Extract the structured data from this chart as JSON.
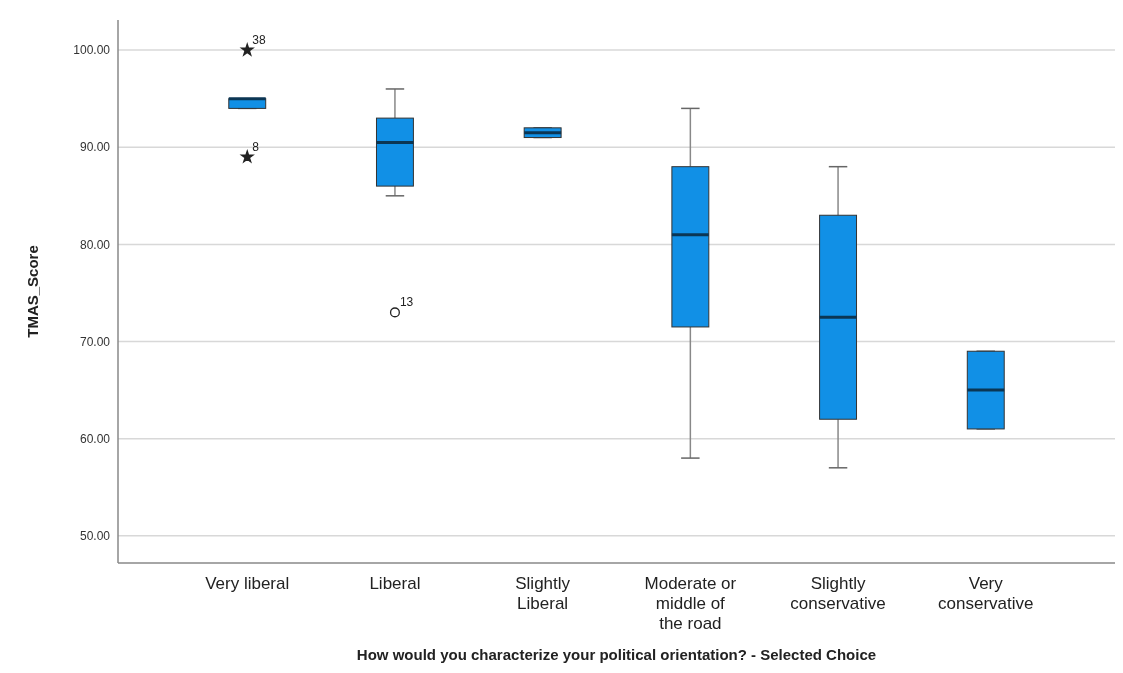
{
  "chart_data": {
    "type": "box",
    "xlabel": "How would you characterize your political orientation? - Selected Choice",
    "ylabel": "TMAS_Score",
    "categories": [
      "Very liberal",
      "Liberal",
      "Slightly Liberal",
      "Moderate or middle of the road",
      "Slightly conservative",
      "Very conservative"
    ],
    "series": [
      {
        "color": "#1190e6",
        "boxes": [
          {
            "low": 94,
            "q1": 94,
            "median": 95,
            "q3": 95,
            "high": 95
          },
          {
            "low": 85,
            "q1": 86,
            "median": 90.5,
            "q3": 93,
            "high": 96
          },
          {
            "low": 91,
            "q1": 91,
            "median": 91.5,
            "q3": 92,
            "high": 92
          },
          {
            "low": 58,
            "q1": 71.5,
            "median": 81,
            "q3": 88,
            "high": 94
          },
          {
            "low": 57,
            "q1": 62,
            "median": 72.5,
            "q3": 83,
            "high": 88
          },
          {
            "low": 61,
            "q1": 61,
            "median": 65,
            "q3": 69,
            "high": 69
          }
        ]
      },
      {
        "type": "scatter",
        "marker": "star",
        "color": "#222222",
        "x": [
          "Very liberal",
          "Very liberal"
        ],
        "values": [
          100,
          89
        ]
      },
      {
        "type": "scatter",
        "marker": "circle",
        "color": "#222222",
        "x": [
          "Liberal"
        ],
        "values": [
          73
        ]
      }
    ],
    "annotations": [
      {
        "text": "38",
        "x": "Very liberal",
        "y": 100
      },
      {
        "text": "8",
        "x": "Very liberal",
        "y": 89
      },
      {
        "text": "13",
        "x": "Liberal",
        "y": 73
      }
    ],
    "ylim": [
      47.2,
      103.1
    ],
    "yticks": [
      {
        "value": 50,
        "label": "50.00"
      },
      {
        "value": 60,
        "label": "60.00"
      },
      {
        "value": 70,
        "label": "70.00"
      },
      {
        "value": 80,
        "label": "80.00"
      },
      {
        "value": 90,
        "label": "90.00"
      },
      {
        "value": 100,
        "label": "100.00"
      }
    ],
    "grid": "y"
  }
}
